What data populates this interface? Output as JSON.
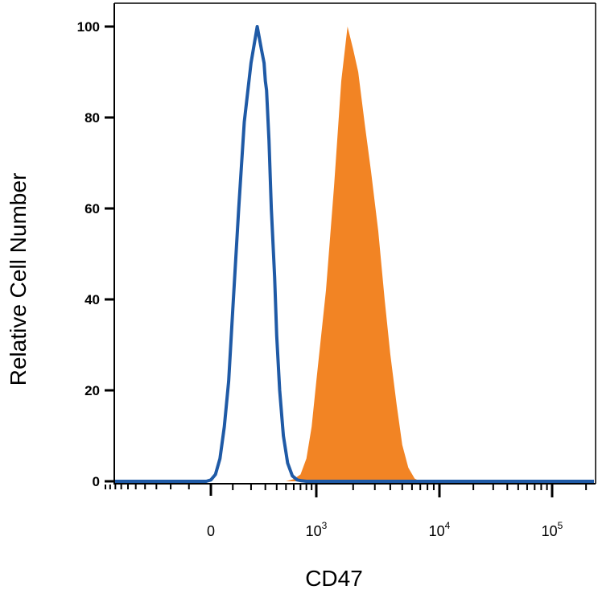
{
  "chart_data": {
    "type": "area",
    "xlabel": "CD47",
    "ylabel": "Relative Cell Number",
    "ylim": [
      0,
      100
    ],
    "xscale": "biexponential",
    "y_ticks": [
      "0",
      "20",
      "40",
      "60",
      "80",
      "100"
    ],
    "x_ticks": [
      {
        "base": "0",
        "exp": ""
      },
      {
        "base": "10",
        "exp": "3"
      },
      {
        "base": "10",
        "exp": "4"
      },
      {
        "base": "10",
        "exp": "5"
      }
    ],
    "grid": false,
    "series": [
      {
        "style": "line",
        "color": "#1f5aa6",
        "x": [
          -20,
          0,
          20,
          40,
          60,
          80,
          100,
          130,
          160,
          200,
          240,
          270,
          290,
          300,
          310,
          330,
          350,
          380,
          400,
          430,
          470,
          520,
          580,
          650,
          720,
          800,
          900,
          1000
        ],
        "y": [
          0,
          0.3,
          1.5,
          5,
          12,
          22,
          38,
          60,
          79,
          92,
          100,
          95,
          92,
          88,
          86,
          75,
          60,
          45,
          32,
          20,
          10,
          4,
          1.2,
          0.3,
          0.1,
          0,
          0,
          0
        ]
      },
      {
        "style": "filled",
        "color": "#f28424",
        "x": [
          500,
          600,
          700,
          800,
          900,
          1000,
          1200,
          1400,
          1600,
          1800,
          2000,
          2200,
          2500,
          2800,
          3200,
          3600,
          4000,
          4500,
          5000,
          5600,
          6300,
          7000
        ],
        "y": [
          0,
          0.5,
          1.5,
          5,
          12,
          22,
          42,
          65,
          88,
          100,
          95,
          90,
          78,
          68,
          55,
          40,
          28,
          17,
          8,
          3,
          0.6,
          0
        ]
      }
    ]
  }
}
